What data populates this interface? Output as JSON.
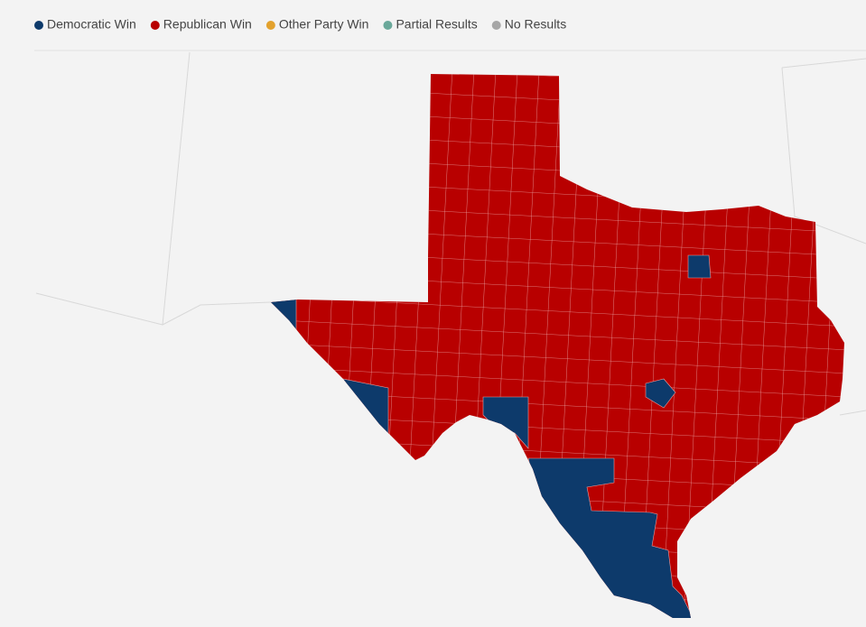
{
  "legend": [
    {
      "label": "Democratic Win",
      "color": "#0d3a6b"
    },
    {
      "label": "Republican Win",
      "color": "#b80000"
    },
    {
      "label": "Other Party Win",
      "color": "#e3a22e"
    },
    {
      "label": "Partial Results",
      "color": "#6aa89a"
    },
    {
      "label": "No Results",
      "color": "#a6a6a6"
    }
  ]
}
